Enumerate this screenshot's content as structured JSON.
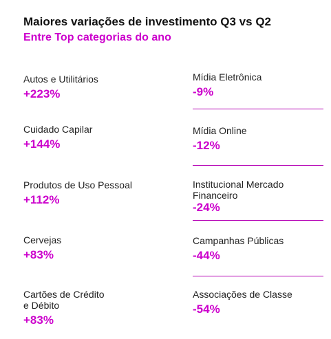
{
  "header": {
    "title": "Maiores variações de investimento Q3 vs Q2",
    "subtitle": "Entre Top categorias do ano"
  },
  "rows": [
    {
      "left": {
        "label": "Autos e Utilitários",
        "value": "+223%"
      },
      "right": {
        "label": "Mídia Eletrônica",
        "value": "-9%"
      }
    },
    {
      "left": {
        "label": "Cuidado Capilar",
        "value": "+144%"
      },
      "right": {
        "label": "Mídia Online",
        "value": "-12%"
      }
    },
    {
      "left": {
        "label": "Produtos de Uso Pessoal",
        "value": "+112%"
      },
      "right": {
        "label": "Institucional Mercado Financeiro",
        "value": "-24%"
      }
    },
    {
      "left": {
        "label": "Cervejas",
        "value": "+83%"
      },
      "right": {
        "label": "Campanhas Públicas",
        "value": "-44%"
      }
    },
    {
      "left": {
        "label": "Cartões de Crédito e Débito",
        "value": "+83%"
      },
      "right": {
        "label": "Associações de Classe",
        "value": "-54%"
      }
    }
  ],
  "colors": {
    "accent": "#cc00cc",
    "text": "#111111",
    "background": "#ffffff"
  }
}
